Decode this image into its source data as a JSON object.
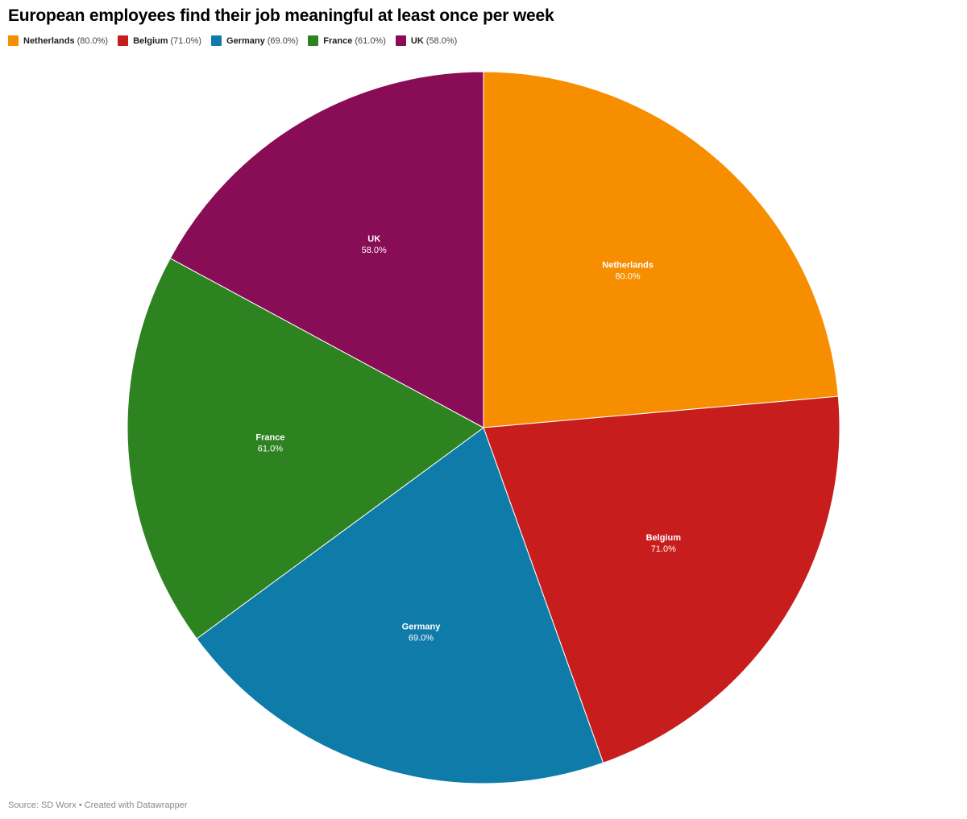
{
  "chart_data": {
    "type": "pie",
    "title": "European employees find their job meaningful at least once per week",
    "categories": [
      "Netherlands",
      "Belgium",
      "Germany",
      "France",
      "UK"
    ],
    "values": [
      80.0,
      71.0,
      69.0,
      61.0,
      58.0
    ],
    "value_labels": [
      "80.0%",
      "71.0%",
      "69.0%",
      "61.0%",
      "58.0%"
    ],
    "legend_values": [
      "(80.0%)",
      "(71.0%)",
      "(69.0%)",
      "(61.0%)",
      "(58.0%)"
    ],
    "colors": [
      "#f78e00",
      "#c71d1d",
      "#0f7ba8",
      "#2d8320",
      "#880c56"
    ],
    "legend_position": "top-left",
    "start_angle_deg": 0,
    "direction": "clockwise"
  },
  "footer": {
    "source": "Source: SD Worx • Created with Datawrapper"
  }
}
